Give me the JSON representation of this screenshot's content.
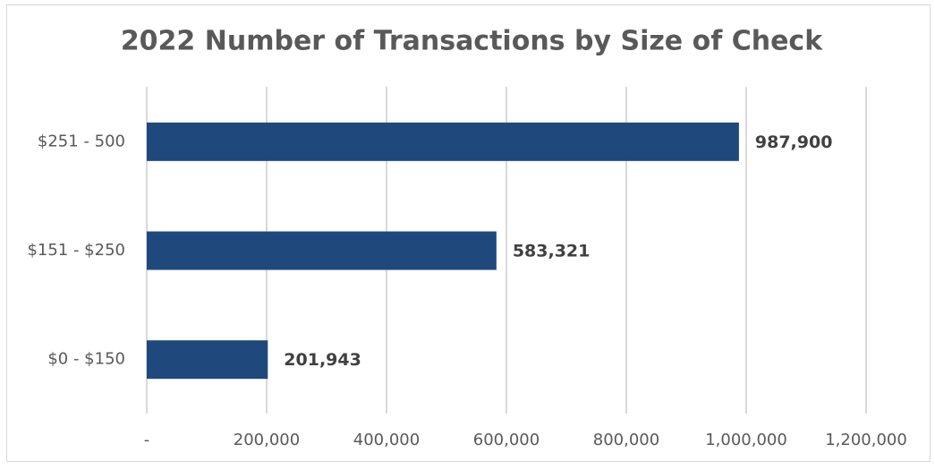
{
  "chart_data": {
    "type": "bar",
    "orientation": "horizontal",
    "title": "2022 Number of Transactions by Size of Check",
    "categories": [
      "$251 - 500",
      "$151 - $250",
      "$0 - $150"
    ],
    "values": [
      987900,
      583321,
      201943
    ],
    "value_labels": [
      "987,900",
      "583,321",
      "201,943"
    ],
    "color": "#1f497d",
    "xlim": [
      0,
      1200000
    ],
    "xticks": [
      {
        "value": 0,
        "label": "-"
      },
      {
        "value": 200000,
        "label": "200,000"
      },
      {
        "value": 400000,
        "label": "400,000"
      },
      {
        "value": 600000,
        "label": "600,000"
      },
      {
        "value": 800000,
        "label": "800,000"
      },
      {
        "value": 1000000,
        "label": "1,000,000"
      },
      {
        "value": 1200000,
        "label": "1,200,000"
      }
    ],
    "grid": true
  }
}
